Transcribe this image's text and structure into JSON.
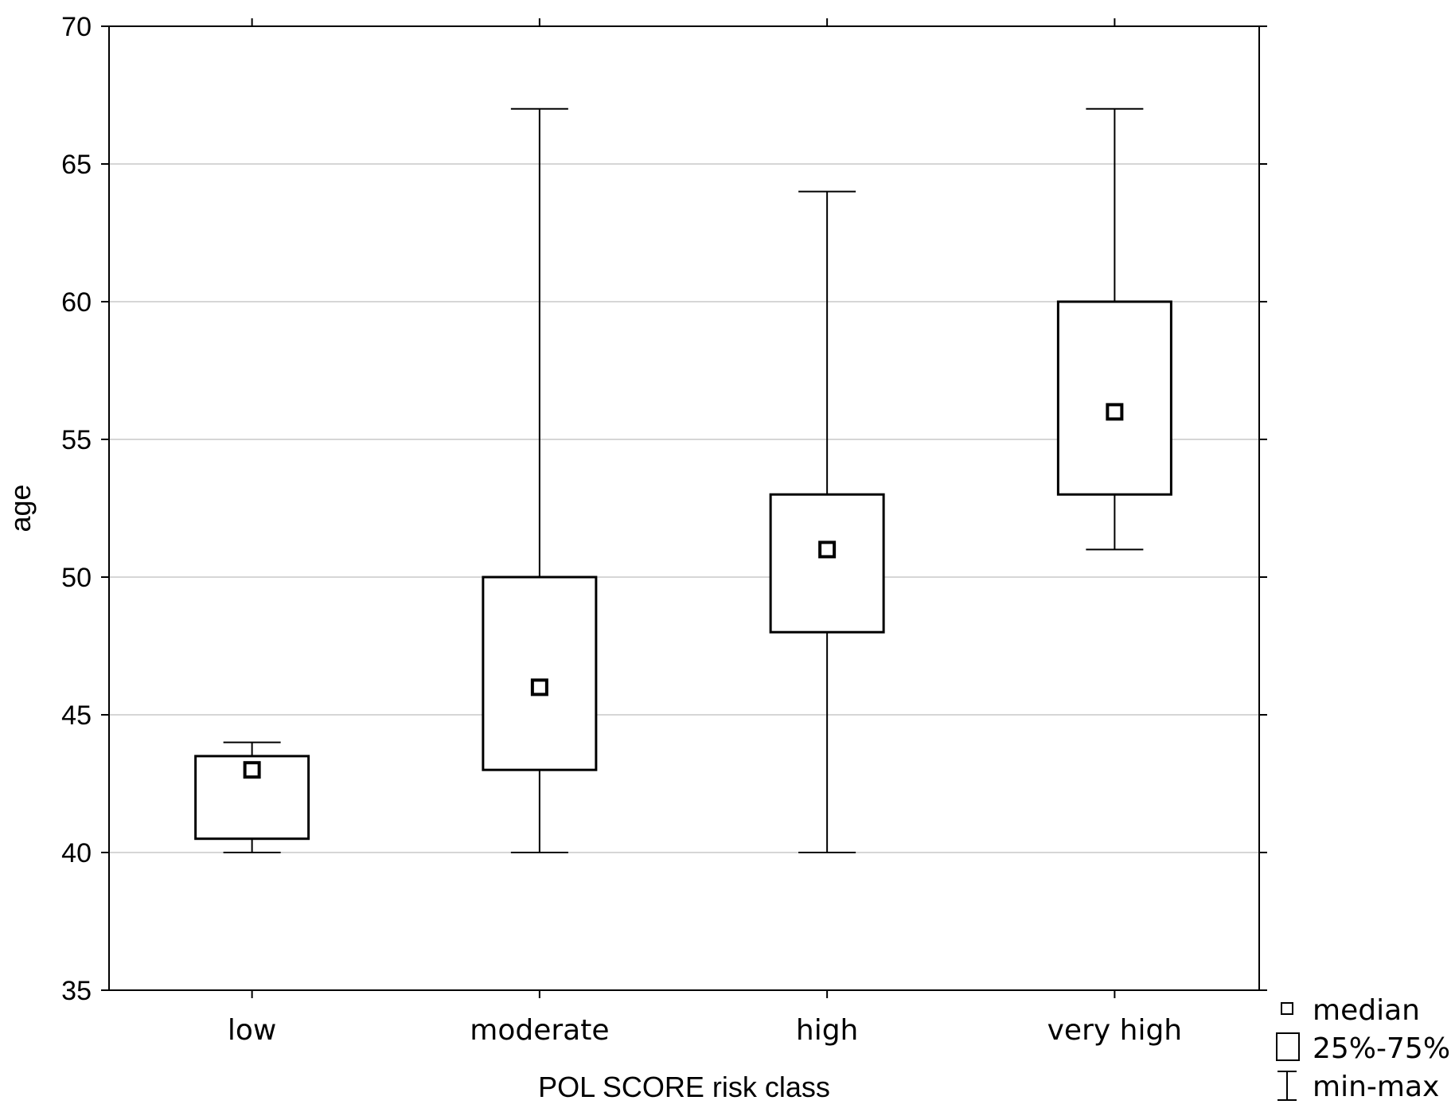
{
  "chart_data": {
    "type": "box",
    "title": "",
    "xlabel": "POL SCORE risk class",
    "ylabel": "age",
    "ylim": [
      35,
      70
    ],
    "yticks": [
      35,
      40,
      45,
      50,
      55,
      60,
      65,
      70
    ],
    "grid": true,
    "categories": [
      "low",
      "moderate",
      "high",
      "very high"
    ],
    "series": [
      {
        "category": "low",
        "min": 40,
        "q1": 40.5,
        "median": 43,
        "q3": 43.5,
        "max": 44
      },
      {
        "category": "moderate",
        "min": 40,
        "q1": 43,
        "median": 46,
        "q3": 50,
        "max": 67
      },
      {
        "category": "high",
        "min": 40,
        "q1": 48,
        "median": 51,
        "q3": 53,
        "max": 64
      },
      {
        "category": "very high",
        "min": 51,
        "q1": 53,
        "median": 56,
        "q3": 60,
        "max": 67
      }
    ],
    "legend": {
      "placement": "bottom-right",
      "entries": [
        {
          "symbol": "median",
          "label": "median"
        },
        {
          "symbol": "box",
          "label": "25%-75%"
        },
        {
          "symbol": "whisker",
          "label": "min-max"
        }
      ]
    },
    "colors": {
      "stroke": "#000000",
      "grid": "#c8c8c8",
      "background": "#ffffff"
    }
  }
}
